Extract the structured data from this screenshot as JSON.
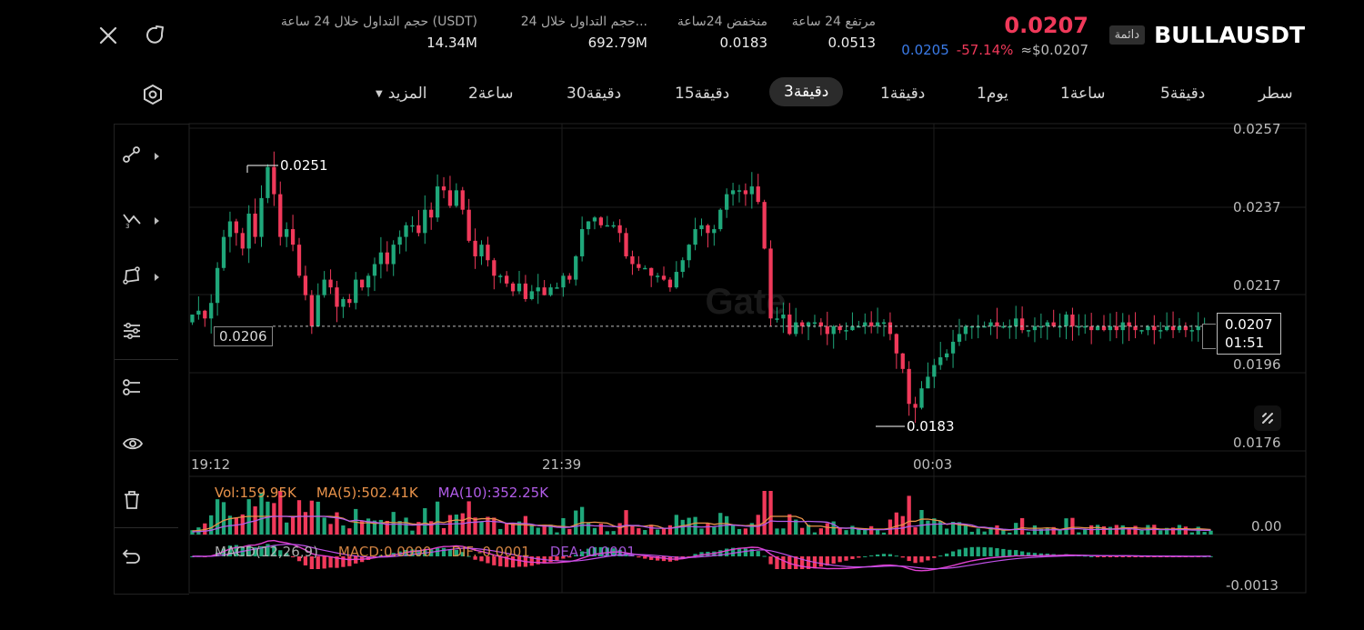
{
  "header": {
    "symbol": "BULLAUSDT",
    "badge": "دائمة",
    "last_price": "0.0207",
    "mark_price": "0.0205",
    "change_pct": "-57.14%",
    "usd_price": "≈$0.0207",
    "stats": [
      {
        "label": "مرتفع 24 ساعة",
        "value": "0.0513"
      },
      {
        "label": "منخفض 24ساعة",
        "value": "0.0183"
      },
      {
        "label": "حجم التداول خلال 24...",
        "value": "692.79M"
      },
      {
        "label": "حجم التداول خلال 24 ساعة (USDT)",
        "value": "14.34M"
      }
    ]
  },
  "timeframes": [
    {
      "label": "سطر"
    },
    {
      "label": "5دقيقة"
    },
    {
      "label": "1ساعة"
    },
    {
      "label": "1يوم"
    },
    {
      "label": "1دقيقة"
    },
    {
      "label": "3دقيقة",
      "active": true
    },
    {
      "label": "15دقيقة"
    },
    {
      "label": "30دقيقة"
    },
    {
      "label": "2ساعة"
    },
    {
      "label": "المزيد"
    }
  ],
  "icons": {
    "close": "close-icon",
    "refresh": "refresh-icon",
    "settings": "settings-icon",
    "tools": [
      "trendline-icon",
      "fibonacci-icon",
      "shape-icon",
      "indicator-settings-icon",
      "layers-icon",
      "eye-icon",
      "trash-icon",
      "undo-icon"
    ]
  },
  "watermark": "Gate",
  "colors": {
    "up": "#1fa77a",
    "down": "#f0395a",
    "accent_blue": "#3b7be8",
    "macd_line": "#e040d0",
    "ma5": "#e8924a",
    "ma10": "#b15ce8"
  },
  "chart_data": {
    "type": "candlestick",
    "y_ticks": [
      "0.0257",
      "0.0237",
      "0.0217",
      "0.0196",
      "0.0176"
    ],
    "ylim": [
      0.0176,
      0.0257
    ],
    "x_ticks": [
      "19:12",
      "21:39",
      "00:03"
    ],
    "high_label": "0.0251",
    "low_label": "0.0183",
    "current_price_label": "0.0207",
    "countdown": "01:51",
    "hline_label": "0.0206",
    "hline_value": 0.0206,
    "candles_close": [
      0.0209,
      0.021,
      0.0208,
      0.0212,
      0.0221,
      0.0229,
      0.0233,
      0.023,
      0.0226,
      0.0235,
      0.0229,
      0.0239,
      0.0247,
      0.024,
      0.0229,
      0.0231,
      0.0227,
      0.0219,
      0.0214,
      0.0206,
      0.0214,
      0.0218,
      0.0216,
      0.0211,
      0.0213,
      0.0212,
      0.0218,
      0.0216,
      0.0219,
      0.0222,
      0.0225,
      0.0222,
      0.0227,
      0.0229,
      0.0232,
      0.0232,
      0.023,
      0.0236,
      0.0234,
      0.0242,
      0.0241,
      0.0237,
      0.0241,
      0.0236,
      0.0228,
      0.0224,
      0.0227,
      0.0223,
      0.0219,
      0.0219,
      0.0217,
      0.0215,
      0.0217,
      0.0213,
      0.0215,
      0.0216,
      0.0214,
      0.0216,
      0.0216,
      0.0219,
      0.0218,
      0.0224,
      0.0231,
      0.0233,
      0.0234,
      0.0232,
      0.0232,
      0.0232,
      0.023,
      0.0224,
      0.0222,
      0.0221,
      0.0221,
      0.0219,
      0.0219,
      0.0218,
      0.0216,
      0.022,
      0.0223,
      0.0227,
      0.0231,
      0.0232,
      0.023,
      0.0231,
      0.0236,
      0.024,
      0.0241,
      0.0241,
      0.024,
      0.0242,
      0.0238,
      0.0226,
      0.0208,
      0.0208,
      0.0209,
      0.0204,
      0.0207,
      0.0206,
      0.0207,
      0.0207,
      0.0206,
      0.0204,
      0.0206,
      0.0205,
      0.0205,
      0.0206,
      0.0206,
      0.0207,
      0.0206,
      0.0207,
      0.0207,
      0.0204,
      0.0199,
      0.0195,
      0.0186,
      0.0185,
      0.019,
      0.0193,
      0.0196,
      0.0198,
      0.0199,
      0.0202,
      0.0204,
      0.0206,
      0.0206,
      0.0206,
      0.0206,
      0.0207,
      0.0206,
      0.0206,
      0.0206,
      0.0208,
      0.0205,
      0.0205,
      0.0206,
      0.0206,
      0.0207,
      0.0206,
      0.0206,
      0.0209,
      0.0206,
      0.0206,
      0.0206,
      0.0205,
      0.0206,
      0.0205,
      0.0206,
      0.0205,
      0.0207,
      0.0206,
      0.0205,
      0.0205,
      0.0206,
      0.0205,
      0.0205,
      0.0206,
      0.0205,
      0.0206,
      0.0205,
      0.0205,
      0.0206,
      0.0206,
      0.0206
    ],
    "volume_legend": {
      "vol": "Vol:159.95K",
      "ma5": "MA(5):502.41K",
      "ma10": "MA(10):352.25K"
    },
    "volume_axis": "0.00",
    "macd_legend": {
      "title": "MACD(12,26,9)",
      "macd": "MACD:0.0000",
      "dif": "DIF:-0.0001",
      "dea": "DEA:-0.0001"
    },
    "macd_axis": "-0.0013"
  }
}
